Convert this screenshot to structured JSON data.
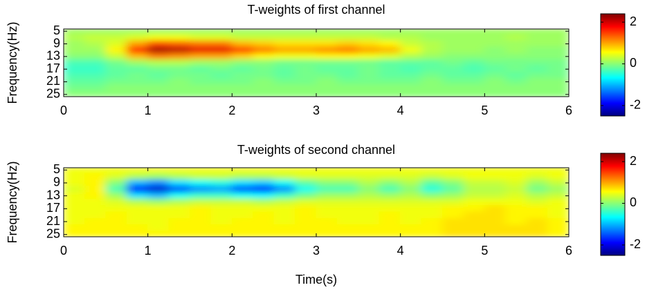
{
  "chart_data": [
    {
      "type": "heatmap",
      "title": "T-weights of first channel",
      "ylabel": "Frequency(Hz)",
      "colormap": "jet",
      "x": [
        0.125,
        0.375,
        0.625,
        0.875,
        1.125,
        1.375,
        1.625,
        1.875,
        2.125,
        2.375,
        2.625,
        2.875,
        3.125,
        3.375,
        3.625,
        3.875,
        4.125,
        4.375,
        4.625,
        4.875,
        5.125,
        5.375,
        5.625,
        5.875
      ],
      "y": [
        5,
        7,
        9,
        11,
        13,
        15,
        17,
        19,
        21,
        23,
        25
      ],
      "z": [
        [
          0.1,
          0.1,
          0.1,
          0.1,
          0.1,
          0.1,
          0.1,
          0.1,
          0.1,
          0.1,
          0.1,
          0.1,
          0.1,
          0.1,
          0.1,
          0.1,
          0.1,
          0.1,
          0.1,
          0.1,
          0.1,
          0.1,
          0.1,
          0.1
        ],
        [
          0.2,
          0.3,
          0.3,
          0.4,
          0.5,
          0.5,
          0.4,
          0.4,
          0.3,
          0.3,
          0.3,
          0.3,
          0.3,
          0.3,
          0.3,
          0.2,
          0.2,
          0.1,
          0.1,
          0.1,
          0.1,
          0.2,
          0.1,
          0.1
        ],
        [
          0.1,
          0.2,
          0.4,
          1.0,
          1.4,
          1.3,
          1.2,
          1.2,
          0.9,
          0.8,
          0.7,
          0.7,
          0.7,
          0.8,
          0.7,
          0.6,
          0.3,
          0.2,
          0.1,
          0.1,
          0.1,
          0.1,
          0.1,
          0.1
        ],
        [
          0.1,
          0.1,
          0.6,
          1.6,
          2.2,
          2.1,
          1.9,
          1.9,
          1.5,
          1.2,
          1.0,
          1.0,
          1.1,
          1.2,
          1.0,
          0.9,
          0.5,
          0.2,
          0.1,
          0.1,
          0.0,
          0.1,
          0.0,
          0.0
        ],
        [
          0.0,
          0.0,
          0.3,
          0.9,
          1.2,
          1.1,
          1.0,
          1.0,
          0.8,
          0.6,
          0.5,
          0.5,
          0.6,
          0.6,
          0.5,
          0.4,
          0.2,
          0.1,
          0.0,
          0.0,
          0.0,
          0.0,
          0.0,
          0.0
        ],
        [
          -0.3,
          -0.3,
          -0.1,
          0.1,
          0.2,
          0.2,
          0.1,
          0.1,
          0.0,
          0.0,
          -0.1,
          -0.1,
          -0.1,
          -0.1,
          -0.1,
          -0.2,
          -0.2,
          -0.2,
          -0.1,
          -0.2,
          -0.1,
          -0.1,
          -0.1,
          -0.1
        ],
        [
          -0.4,
          -0.4,
          -0.2,
          -0.2,
          -0.1,
          -0.1,
          -0.2,
          -0.1,
          -0.2,
          -0.1,
          -0.2,
          -0.1,
          -0.2,
          -0.2,
          -0.1,
          -0.2,
          -0.3,
          -0.2,
          -0.2,
          -0.3,
          -0.2,
          -0.1,
          -0.2,
          -0.1
        ],
        [
          -0.3,
          -0.3,
          -0.2,
          -0.1,
          -0.2,
          -0.1,
          -0.1,
          -0.2,
          -0.1,
          -0.1,
          -0.2,
          -0.1,
          -0.1,
          -0.2,
          -0.1,
          -0.2,
          -0.2,
          -0.1,
          -0.2,
          -0.2,
          -0.1,
          -0.2,
          -0.1,
          -0.1
        ],
        [
          -0.2,
          -0.2,
          -0.1,
          -0.1,
          -0.1,
          0.0,
          -0.1,
          -0.1,
          -0.1,
          0.0,
          -0.1,
          -0.1,
          0.0,
          -0.1,
          -0.1,
          -0.1,
          -0.1,
          0.0,
          -0.1,
          -0.1,
          0.0,
          -0.1,
          0.0,
          0.0
        ],
        [
          -0.1,
          -0.1,
          0.0,
          0.0,
          0.0,
          0.0,
          0.0,
          0.0,
          0.0,
          0.0,
          0.0,
          0.0,
          0.0,
          0.0,
          0.0,
          0.0,
          0.0,
          0.0,
          0.0,
          0.0,
          0.0,
          0.0,
          0.0,
          0.0
        ],
        [
          0.0,
          0.0,
          0.0,
          0.0,
          0.0,
          0.0,
          0.0,
          0.0,
          0.0,
          0.0,
          0.0,
          0.0,
          0.0,
          0.0,
          0.0,
          0.0,
          0.0,
          0.0,
          0.0,
          0.0,
          0.0,
          0.0,
          0.0,
          0.0
        ]
      ],
      "xlim": [
        0,
        6
      ],
      "xticks": [
        0,
        1,
        2,
        3,
        4,
        5,
        6
      ],
      "ylim": [
        4.3,
        25.7
      ],
      "y_reversed": true,
      "yticks": [
        5,
        9,
        13,
        17,
        21,
        25
      ],
      "clim": [
        -2.5,
        2.4
      ],
      "cticks": [
        -2,
        0,
        2
      ]
    },
    {
      "type": "heatmap",
      "title": "T-weights of second channel",
      "ylabel": "Frequency(Hz)",
      "xlabel": "Time(s)",
      "colormap": "jet",
      "x": [
        0.125,
        0.375,
        0.625,
        0.875,
        1.125,
        1.375,
        1.625,
        1.875,
        2.125,
        2.375,
        2.625,
        2.875,
        3.125,
        3.375,
        3.625,
        3.875,
        4.125,
        4.375,
        4.625,
        4.875,
        5.125,
        5.375,
        5.625,
        5.875
      ],
      "y": [
        5,
        7,
        9,
        11,
        13,
        15,
        17,
        19,
        21,
        23,
        25
      ],
      "z": [
        [
          0.5,
          0.5,
          0.5,
          0.5,
          0.5,
          0.5,
          0.5,
          0.5,
          0.5,
          0.5,
          0.5,
          0.5,
          0.5,
          0.5,
          0.5,
          0.5,
          0.5,
          0.5,
          0.5,
          0.5,
          0.5,
          0.5,
          0.5,
          0.5
        ],
        [
          0.5,
          0.6,
          0.4,
          0.2,
          0.1,
          0.2,
          0.3,
          0.3,
          0.2,
          0.2,
          0.3,
          0.4,
          0.4,
          0.4,
          0.4,
          0.4,
          0.4,
          0.3,
          0.4,
          0.5,
          0.5,
          0.5,
          0.4,
          0.5
        ],
        [
          0.5,
          0.6,
          0.0,
          -1.0,
          -1.2,
          -0.8,
          -0.6,
          -0.5,
          -0.8,
          -0.9,
          -0.6,
          -0.2,
          0.0,
          0.0,
          0.2,
          0.0,
          0.2,
          -0.2,
          0.0,
          0.3,
          0.3,
          0.4,
          0.1,
          0.3
        ],
        [
          0.4,
          0.6,
          -0.3,
          -1.8,
          -2.1,
          -1.5,
          -1.2,
          -1.1,
          -1.5,
          -1.7,
          -1.2,
          -0.6,
          -0.3,
          -0.3,
          0.0,
          -0.3,
          0.0,
          -0.5,
          -0.2,
          0.2,
          0.2,
          0.3,
          -0.1,
          0.1
        ],
        [
          0.5,
          0.6,
          0.1,
          -0.8,
          -1.0,
          -0.6,
          -0.4,
          -0.4,
          -0.6,
          -0.7,
          -0.4,
          -0.1,
          0.1,
          0.1,
          0.2,
          0.1,
          0.2,
          0.0,
          0.1,
          0.3,
          0.3,
          0.4,
          0.2,
          0.3
        ],
        [
          0.5,
          0.5,
          0.4,
          0.2,
          0.1,
          0.2,
          0.3,
          0.3,
          0.3,
          0.2,
          0.3,
          0.4,
          0.4,
          0.4,
          0.4,
          0.4,
          0.4,
          0.4,
          0.4,
          0.5,
          0.5,
          0.5,
          0.4,
          0.5
        ],
        [
          0.5,
          0.5,
          0.5,
          0.5,
          0.5,
          0.5,
          0.6,
          0.5,
          0.5,
          0.5,
          0.5,
          0.6,
          0.5,
          0.5,
          0.5,
          0.5,
          0.5,
          0.5,
          0.6,
          0.6,
          0.7,
          0.6,
          0.6,
          0.5
        ],
        [
          0.5,
          0.5,
          0.6,
          0.5,
          0.5,
          0.5,
          0.6,
          0.5,
          0.5,
          0.6,
          0.5,
          0.6,
          0.5,
          0.5,
          0.5,
          0.6,
          0.5,
          0.5,
          0.6,
          0.7,
          0.7,
          0.6,
          0.6,
          0.5
        ],
        [
          0.5,
          0.6,
          0.6,
          0.5,
          0.5,
          0.6,
          0.6,
          0.5,
          0.6,
          0.6,
          0.5,
          0.6,
          0.6,
          0.5,
          0.5,
          0.6,
          0.5,
          0.6,
          0.7,
          0.7,
          0.7,
          0.6,
          0.7,
          0.6
        ],
        [
          0.6,
          0.6,
          0.6,
          0.6,
          0.5,
          0.6,
          0.6,
          0.6,
          0.6,
          0.6,
          0.6,
          0.6,
          0.6,
          0.6,
          0.6,
          0.6,
          0.6,
          0.6,
          0.7,
          0.7,
          0.7,
          0.7,
          0.7,
          0.6
        ],
        [
          0.6,
          0.6,
          0.6,
          0.6,
          0.6,
          0.6,
          0.6,
          0.6,
          0.6,
          0.6,
          0.6,
          0.6,
          0.6,
          0.6,
          0.6,
          0.6,
          0.6,
          0.6,
          0.7,
          0.7,
          0.7,
          0.7,
          0.7,
          0.6
        ]
      ],
      "xlim": [
        0,
        6
      ],
      "xticks": [
        0,
        1,
        2,
        3,
        4,
        5,
        6
      ],
      "ylim": [
        4.3,
        25.7
      ],
      "y_reversed": true,
      "yticks": [
        5,
        9,
        13,
        17,
        21,
        25
      ],
      "clim": [
        -2.5,
        2.4
      ],
      "cticks": [
        -2,
        0,
        2
      ]
    }
  ]
}
